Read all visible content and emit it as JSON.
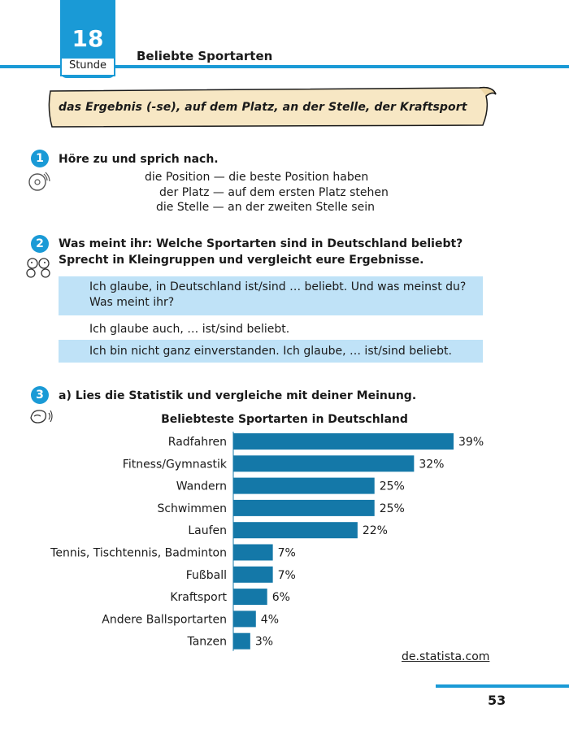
{
  "header": {
    "lesson_number": "18",
    "lesson_word": "Stunde",
    "title": "Beliebte Sportarten"
  },
  "vocab_scroll": {
    "text": "das Ergebnis (-se), auf dem Platz, an der Stelle, der Kraftsport"
  },
  "exercise1": {
    "number": "1",
    "icon": "cd-icon",
    "instruction": "Höre zu und sprich nach.",
    "lines": [
      "die Position — die beste Position haben",
      "der Platz — auf dem ersten Platz stehen",
      "die Stelle — an der zweiten Stelle sein"
    ]
  },
  "exercise2": {
    "number": "2",
    "icon": "discussion-icon",
    "instruction": "Was meint ihr: Welche Sportarten sind in Deutschland beliebt? Sprecht in Kleingruppen und vergleicht eure Ergebnisse.",
    "dialogue": [
      "Ich glaube, in Deutschland ist/sind … beliebt. Und was meinst du? Was meint ihr?",
      "Ich glaube auch, … ist/sind beliebt.",
      "Ich bin nicht ganz einverstanden. Ich glaube, … ist/sind beliebt."
    ]
  },
  "exercise3": {
    "number": "3",
    "icon": "reading-icon",
    "instruction": "a) Lies die Statistik und vergleiche mit deiner Meinung."
  },
  "chart_data": {
    "type": "bar",
    "orientation": "horizontal",
    "title": "Beliebteste Sportarten in Deutschland",
    "categories": [
      "Radfahren",
      "Fitness/Gymnastik",
      "Wandern",
      "Schwimmen",
      "Laufen",
      "Tennis, Tischtennis, Badminton",
      "Fußball",
      "Kraftsport",
      "Andere Ballsportarten",
      "Tanzen"
    ],
    "values": [
      39,
      32,
      25,
      25,
      22,
      7,
      7,
      6,
      4,
      3
    ],
    "value_labels": [
      "39%",
      "32%",
      "25%",
      "25%",
      "22%",
      "7%",
      "7%",
      "6%",
      "4%",
      "3%"
    ],
    "unit": "%",
    "bar_color": "#1478a8",
    "grid": false,
    "legend": "none"
  },
  "source": "de.statista.com",
  "page_number": "53",
  "colors": {
    "accent": "#1a9ad6",
    "dialogue_highlight": "#bfe2f7",
    "scroll_fill": "#f7e7c4"
  }
}
